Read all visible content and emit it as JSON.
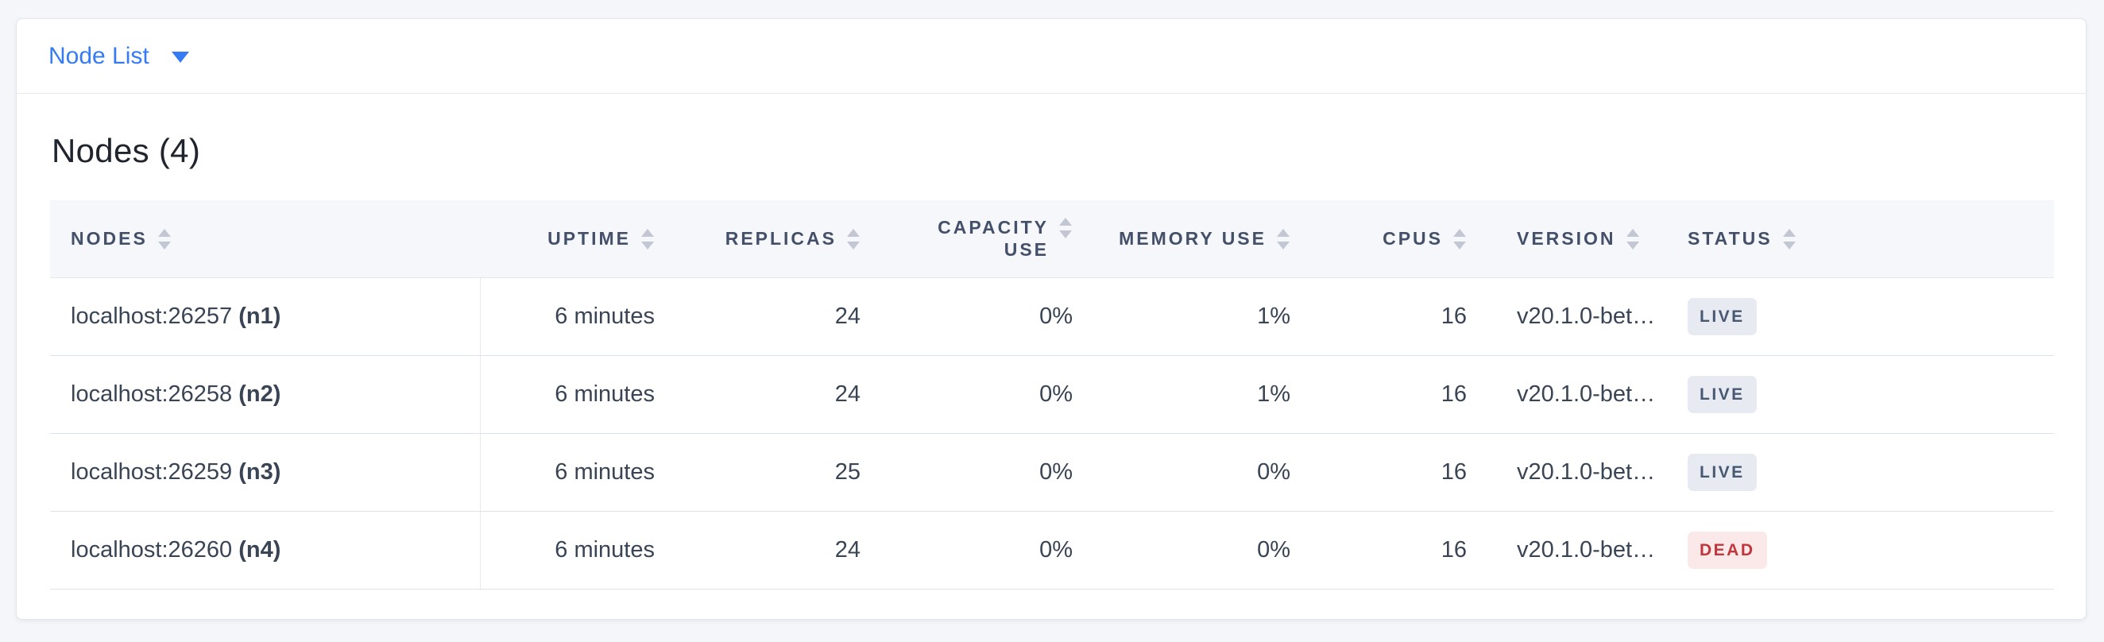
{
  "toolbar": {
    "dropdown_label": "Node List"
  },
  "panel": {
    "title": "Nodes (4)"
  },
  "table": {
    "columns": [
      {
        "key": "nodes",
        "label": "NODES",
        "align": "left"
      },
      {
        "key": "uptime",
        "label": "UPTIME",
        "align": "right"
      },
      {
        "key": "replicas",
        "label": "REPLICAS",
        "align": "right"
      },
      {
        "key": "capacity",
        "label": "CAPACITY USE",
        "align": "right",
        "wrap": true
      },
      {
        "key": "memory",
        "label": "MEMORY USE",
        "align": "right"
      },
      {
        "key": "cpus",
        "label": "CPUS",
        "align": "right"
      },
      {
        "key": "version",
        "label": "VERSION",
        "align": "left"
      },
      {
        "key": "status",
        "label": "STATUS",
        "align": "left"
      }
    ],
    "rows": [
      {
        "address": "localhost:26257",
        "name": "(n1)",
        "uptime": "6 minutes",
        "replicas": "24",
        "capacity": "0%",
        "memory": "1%",
        "cpus": "16",
        "version": "v20.1.0-bet…",
        "status": "LIVE"
      },
      {
        "address": "localhost:26258",
        "name": "(n2)",
        "uptime": "6 minutes",
        "replicas": "24",
        "capacity": "0%",
        "memory": "1%",
        "cpus": "16",
        "version": "v20.1.0-bet…",
        "status": "LIVE"
      },
      {
        "address": "localhost:26259",
        "name": "(n3)",
        "uptime": "6 minutes",
        "replicas": "25",
        "capacity": "0%",
        "memory": "0%",
        "cpus": "16",
        "version": "v20.1.0-bet…",
        "status": "LIVE"
      },
      {
        "address": "localhost:26260",
        "name": "(n4)",
        "uptime": "6 minutes",
        "replicas": "24",
        "capacity": "0%",
        "memory": "0%",
        "cpus": "16",
        "version": "v20.1.0-bet…",
        "status": "DEAD"
      }
    ]
  },
  "colors": {
    "accent_blue": "#357bf2",
    "live_bg": "#e7eaf1",
    "live_text": "#475872",
    "dead_bg": "#fbe9ea",
    "dead_text": "#c0363c",
    "header_text": "#44506a",
    "data_text": "#394455"
  }
}
